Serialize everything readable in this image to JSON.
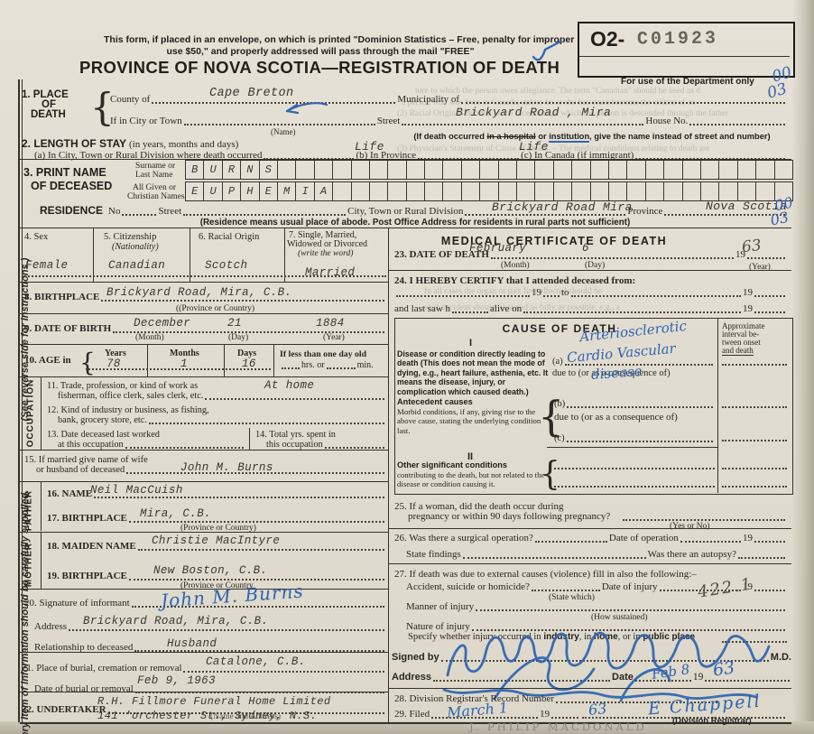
{
  "margin": {
    "note_main": "Every item of information should be carefully supplied.",
    "note_side": "(See reverse side for instructions.)"
  },
  "misc": {
    "nineteen": "19",
    "month_sub": "(Month)",
    "day_sub": "(Day)",
    "year_sub": "(Year)"
  },
  "header": {
    "notice1": "This form, if placed in an envelope, on which is printed \"Dominion Statistics – Free, penalty for improper",
    "notice2": "use $50,\" and properly addressed will pass through the mail \"FREE\"",
    "title": "PROVINCE OF NOVA SCOTIA—REGISTRATION OF DEATH",
    "box_prefix": "O2-",
    "box_stamp": "C01923",
    "dept_note": "For use of the Department only",
    "code_top": "00",
    "code_bottom": "03"
  },
  "place": {
    "num1": "1. PLACE",
    "num2": "OF",
    "num3": "DEATH",
    "county_label": "County of",
    "county_value": "Cape Breton",
    "municipality_label": "Municipality of",
    "city_label": "If in City or Town",
    "name_sub": "(Name)",
    "street_label": "Street",
    "street_value": "Brickyard Road , Mira",
    "house_label": "House No.",
    "note_pre": "(If death occurred ",
    "note_struck": "in a hospital",
    "note_mid": " or ",
    "note_inst": "institution",
    "note_post": ", give the name instead of street and number)"
  },
  "stay": {
    "label": "2. LENGTH OF STAY",
    "paren": "(in years, months and days)",
    "a_label": "(a) In City, Town or Rural Division where death occurred",
    "a_value": "Life",
    "b_label": "(b) In Province",
    "b_value": "Life",
    "c_label": "(c) In Canada (if immigrant)"
  },
  "name_section": {
    "label1": "3. PRINT NAME",
    "label2": "OF DECEASED",
    "surname_label1": "Surname or",
    "surname_label2": "Last Name",
    "given_label1": "All Given or",
    "given_label2": "Christian Names",
    "surname": "BURNS",
    "given": "EUPHEMIA"
  },
  "residence": {
    "label": "RESIDENCE",
    "no_label": "No",
    "street_label": "Street",
    "city_label": "City, Town or Rural Division",
    "city_value": "Brickyard Road Mira",
    "province_label": "Province",
    "province_value": "Nova Scotia",
    "code_top": "00",
    "code_bottom": "03",
    "note": "(Residence means usual place of abode. Post Office Address for residents in rural parts not sufficient)"
  },
  "personal": {
    "sex_label": "4. Sex",
    "sex_value": "Female",
    "cit_label": "5. Citizenship",
    "cit_sub": "(Nationality)",
    "cit_value": "Canadian",
    "racial_label": "6. Racial Origin",
    "racial_value": "Scotch",
    "mar_label1": "7. Single, Married,",
    "mar_label2": "Widowed or Divorced",
    "mar_sub": "(write the word)",
    "mar_value": "Married",
    "bp_label": "8. BIRTHPLACE",
    "bp_value": "Brickyard Road, Mira, C.B.",
    "bp_sub": "((Province or Country)",
    "dob_label": "9. DATE OF BIRTH",
    "dob_month": "December",
    "dob_day": "21",
    "dob_year": "1884",
    "age_label": "10. AGE in",
    "years_label": "Years",
    "years_value": "78",
    "months_label": "Months",
    "months_value": "1",
    "days_label": "Days",
    "days_value": "16",
    "less_label": "If less than one day old",
    "hrs_label": "hrs. or",
    "min_label": "min."
  },
  "occupation": {
    "side": "OCCUPATION",
    "l11a": "11. Trade, profession, or kind of work as",
    "l11b": "fisherman, office clerk, sales clerk, etc.",
    "v11": "At  home",
    "l12a": "12. Kind of industry or business, as fishing,",
    "l12b": "bank, grocery store, etc.",
    "l13a": "13. Date deceased last worked",
    "l13b": "at this occupation",
    "l14a": "14. Total yrs. spent in",
    "l14b": "this occupation"
  },
  "spouse": {
    "l15a": "15. If married give name of wife",
    "l15b": "or husband of deceased",
    "value": "John M. Burns"
  },
  "father": {
    "side": "FATHER",
    "name_label": "16. NAME",
    "name_value": "Neil MacCuish",
    "bp_label": "17. BIRTHPLACE",
    "bp_value": "Mira, C.B.",
    "bp_sub": "(Province or Country)"
  },
  "mother": {
    "side": "MOTHER",
    "name_label": "18. MAIDEN NAME",
    "name_value": "Christie MacIntyre",
    "bp_label": "19. BIRTHPLACE",
    "bp_value": "New Boston, C.B.",
    "bp_sub": "(Province or Country"
  },
  "informant": {
    "sig_label": "20. Signature of informant",
    "sig_value": "John M. Burns",
    "addr_label": "Address",
    "addr_value": "Brickyard Road, Mira, C.B.",
    "rel_label": "Relationship to deceased",
    "rel_value": "Husband"
  },
  "burial": {
    "place_label": "21. Place of burial, cremation or removal",
    "place_value": "Catalone, C.B.",
    "date_label": "Date of burial or removal",
    "date_value": "Feb 9, 1963"
  },
  "undertaker": {
    "label": "22. UNDERTAKER",
    "value1": "R.H. Fillmore Funeral Home Limited",
    "value2": "141 'orchester St., Sydney, N.S.",
    "sub": "(Name and Address)"
  },
  "medical": {
    "title": "MEDICAL CERTIFICATE OF DEATH",
    "dod_label": "23. DATE OF DEATH",
    "dod_month": "February",
    "dod_day": "6",
    "dod_year": "63",
    "certify": "24. I HEREBY CERTIFY that I attended deceased from:",
    "to_label": "to",
    "lastsaw_a": "and last saw h",
    "lastsaw_b": "alive on"
  },
  "cause": {
    "header": "CAUSE OF DEATH",
    "interval1": "Approximate",
    "interval2": "interval be-",
    "interval3": "tween onset",
    "interval4": "and death",
    "part1": "I",
    "disease_label": "Disease or condition directly leading to death (This does not mean the mode of dying, e.g., heart failure, asthenia, etc. It means the disease, injury, or complication which caused death.)",
    "a_label": "(a)",
    "due_to": "due to (or as a consequence of)",
    "a_value1": "Arteriosclerotic",
    "a_value2": "Cardio Vascular",
    "a_value3": "disease",
    "antecedent_bold": "Antecedent causes",
    "antecedent_rest": "Morbid conditions, if any, giving rise to the above cause, stating the underlying condition last.",
    "b_label": "(b)",
    "c_label": "(c)",
    "part2": "II",
    "other_bold": "Other significant conditions",
    "other_rest": "contributing to the death, but not related to the disease or condition causing it."
  },
  "q25": {
    "l1": "25. If a woman, did the death occur during",
    "l2": "pregnancy or within 90 days following pregnancy?",
    "sub": "(Yes or No)"
  },
  "q26": {
    "l1a": "26. Was there a surgical operation?",
    "l1b": "Date of operation",
    "l2a": "State findings",
    "l2b": "Was there an autopsy?"
  },
  "q27": {
    "l1": "27. If death was due to external causes (violence) fill in also the following:–",
    "l2a": "Accident, suicide or homicide?",
    "l2sub": "(State which)",
    "l2b": "Date of injury",
    "code_value": "422.1",
    "l3a": "Manner of injury",
    "l3sub": "(How sustained)",
    "l4a": "Nature of injury",
    "l5a": "Specify whether injury occurred in ",
    "l5b": "industry",
    "l5c": ", in ",
    "l5d": "home",
    "l5e": ", or in ",
    "l5f": "public place"
  },
  "signing": {
    "signed_label": "Signed by",
    "md": "M.D.",
    "addr_label": "Address",
    "date_label": "Date",
    "date_value": "Feb 8",
    "date_year": "63",
    "r28": "28. Division Registrar's Record Number",
    "r29": "29. Filed",
    "filed_value": "March 1",
    "filed_year": "63",
    "registrar_sig": "E Chappell",
    "registrar_sub": "(Division Registrar)",
    "pencil_name": "J. PHILIP MACDONALD"
  },
  "bleed": [
    "ture to which the person owes allegiance. The term \"Canadian\" should be used as d",
    "a person who was born in Canada, unless he or she has since become the citizen of an",
    "(2) Racial Origin is defined as the race through which the person is descended through the father",
    "(3) Physician's Statement of Cause of Death. – The medical conditions relating to death are",
    "each accident should be stated as fully as possible, e.g., a",
    "In all cases the organ or part first affected should be"
  ]
}
